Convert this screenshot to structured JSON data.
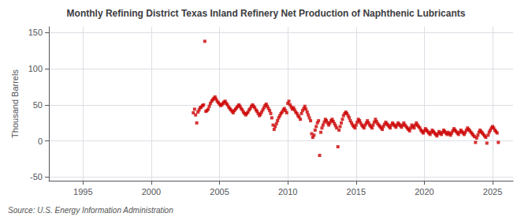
{
  "chart_data": {
    "type": "scatter",
    "title": "Monthly Refining District Texas Inland Refinery Net Production of Naphthenic Lubricants",
    "ylabel": "Thousand Barrels",
    "annotations": [
      "Source: U.S. Energy Information Administration"
    ],
    "color": "#CC0000",
    "marker": "square",
    "grid": true,
    "xlim": [
      1992.5,
      2026.5
    ],
    "xticks": [
      1995,
      2000,
      2005,
      2010,
      2015,
      2020,
      2025
    ],
    "ylim": [
      -55,
      158
    ],
    "yticks": [
      -50,
      0,
      50,
      100,
      150
    ],
    "x": [
      2003.08,
      2003.17,
      2003.25,
      2003.33,
      2003.42,
      2003.5,
      2003.58,
      2003.67,
      2003.75,
      2003.83,
      2003.92,
      2004.0,
      2004.08,
      2004.17,
      2004.25,
      2004.33,
      2004.42,
      2004.5,
      2004.58,
      2004.67,
      2004.75,
      2004.83,
      2004.92,
      2005.0,
      2005.08,
      2005.17,
      2005.25,
      2005.33,
      2005.42,
      2005.5,
      2005.58,
      2005.67,
      2005.75,
      2005.83,
      2005.92,
      2006.0,
      2006.08,
      2006.17,
      2006.25,
      2006.33,
      2006.42,
      2006.5,
      2006.58,
      2006.67,
      2006.75,
      2006.83,
      2006.92,
      2007.0,
      2007.08,
      2007.17,
      2007.25,
      2007.33,
      2007.42,
      2007.5,
      2007.58,
      2007.67,
      2007.75,
      2007.83,
      2007.92,
      2008.0,
      2008.08,
      2008.17,
      2008.25,
      2008.33,
      2008.42,
      2008.5,
      2008.58,
      2008.67,
      2008.75,
      2008.83,
      2008.92,
      2009.0,
      2009.08,
      2009.17,
      2009.25,
      2009.33,
      2009.42,
      2009.5,
      2009.58,
      2009.67,
      2009.75,
      2009.83,
      2009.92,
      2010.0,
      2010.08,
      2010.17,
      2010.25,
      2010.33,
      2010.42,
      2010.5,
      2010.58,
      2010.67,
      2010.75,
      2010.83,
      2010.92,
      2011.0,
      2011.08,
      2011.17,
      2011.25,
      2011.33,
      2011.42,
      2011.5,
      2011.58,
      2011.67,
      2011.75,
      2011.83,
      2011.92,
      2012.0,
      2012.08,
      2012.17,
      2012.25,
      2012.33,
      2012.42,
      2012.5,
      2012.58,
      2012.67,
      2012.75,
      2012.83,
      2012.92,
      2013.0,
      2013.08,
      2013.17,
      2013.25,
      2013.33,
      2013.42,
      2013.5,
      2013.58,
      2013.67,
      2013.75,
      2013.83,
      2013.92,
      2014.0,
      2014.08,
      2014.17,
      2014.25,
      2014.33,
      2014.42,
      2014.5,
      2014.58,
      2014.67,
      2014.75,
      2014.83,
      2014.92,
      2015.0,
      2015.08,
      2015.17,
      2015.25,
      2015.33,
      2015.42,
      2015.5,
      2015.58,
      2015.67,
      2015.75,
      2015.83,
      2015.92,
      2016.0,
      2016.08,
      2016.17,
      2016.25,
      2016.33,
      2016.42,
      2016.5,
      2016.58,
      2016.67,
      2016.75,
      2016.83,
      2016.92,
      2017.0,
      2017.08,
      2017.17,
      2017.25,
      2017.33,
      2017.42,
      2017.5,
      2017.58,
      2017.67,
      2017.75,
      2017.83,
      2017.92,
      2018.0,
      2018.08,
      2018.17,
      2018.25,
      2018.33,
      2018.42,
      2018.5,
      2018.58,
      2018.67,
      2018.75,
      2018.83,
      2018.92,
      2019.0,
      2019.08,
      2019.17,
      2019.25,
      2019.33,
      2019.42,
      2019.5,
      2019.58,
      2019.67,
      2019.75,
      2019.83,
      2019.92,
      2020.0,
      2020.08,
      2020.17,
      2020.25,
      2020.33,
      2020.42,
      2020.5,
      2020.58,
      2020.67,
      2020.75,
      2020.83,
      2020.92,
      2021.0,
      2021.08,
      2021.17,
      2021.25,
      2021.33,
      2021.42,
      2021.5,
      2021.58,
      2021.67,
      2021.75,
      2021.83,
      2021.92,
      2022.0,
      2022.08,
      2022.17,
      2022.25,
      2022.33,
      2022.42,
      2022.5,
      2022.58,
      2022.67,
      2022.75,
      2022.83,
      2022.92,
      2023.0,
      2023.08,
      2023.17,
      2023.25,
      2023.33,
      2023.42,
      2023.5,
      2023.58,
      2023.67,
      2023.75,
      2023.83,
      2023.92,
      2024.0,
      2024.08,
      2024.17,
      2024.25,
      2024.33,
      2024.42,
      2024.5,
      2024.58,
      2024.67,
      2024.75,
      2024.83,
      2024.92,
      2025.0,
      2025.08,
      2025.17,
      2025.25,
      2025.33,
      2025.42
    ],
    "values": [
      39,
      44,
      36,
      25,
      40,
      43,
      46,
      47,
      49,
      50,
      138,
      41,
      42,
      44,
      48,
      52,
      55,
      57,
      59,
      61,
      58,
      55,
      53,
      51,
      49,
      50,
      52,
      54,
      55,
      52,
      50,
      47,
      45,
      43,
      41,
      39,
      42,
      44,
      46,
      48,
      50,
      48,
      45,
      43,
      40,
      38,
      36,
      38,
      40,
      43,
      45,
      48,
      50,
      48,
      46,
      43,
      41,
      38,
      35,
      37,
      40,
      43,
      46,
      49,
      51,
      48,
      45,
      42,
      38,
      32,
      22,
      16,
      20,
      24,
      28,
      32,
      35,
      38,
      40,
      43,
      45,
      42,
      39,
      52,
      55,
      50,
      47,
      44,
      46,
      43,
      40,
      38,
      35,
      33,
      30,
      38,
      42,
      45,
      48,
      44,
      40,
      36,
      32,
      28,
      10,
      5,
      8,
      15,
      20,
      25,
      28,
      -20,
      12,
      18,
      22,
      26,
      30,
      28,
      25,
      22,
      25,
      28,
      30,
      27,
      24,
      21,
      18,
      -8,
      15,
      20,
      25,
      30,
      35,
      38,
      40,
      38,
      35,
      32,
      28,
      25,
      22,
      20,
      18,
      22,
      26,
      30,
      28,
      25,
      22,
      20,
      18,
      22,
      25,
      28,
      25,
      22,
      20,
      18,
      22,
      26,
      30,
      27,
      24,
      22,
      20,
      18,
      16,
      20,
      23,
      26,
      24,
      22,
      20,
      18,
      22,
      25,
      23,
      21,
      19,
      22,
      25,
      23,
      21,
      19,
      22,
      25,
      22,
      20,
      18,
      16,
      14,
      18,
      22,
      20,
      18,
      22,
      25,
      22,
      20,
      18,
      15,
      13,
      11,
      14,
      17,
      15,
      13,
      11,
      9,
      12,
      15,
      13,
      11,
      9,
      7,
      10,
      13,
      11,
      9,
      12,
      15,
      13,
      11,
      9,
      12,
      10,
      8,
      11,
      14,
      17,
      15,
      13,
      11,
      9,
      12,
      15,
      13,
      11,
      9,
      12,
      15,
      18,
      16,
      14,
      12,
      10,
      8,
      6,
      -2,
      4,
      8,
      12,
      15,
      13,
      11,
      9,
      7,
      5,
      -3,
      8,
      12,
      15,
      18,
      20,
      18,
      15,
      13,
      11,
      -2
    ]
  }
}
